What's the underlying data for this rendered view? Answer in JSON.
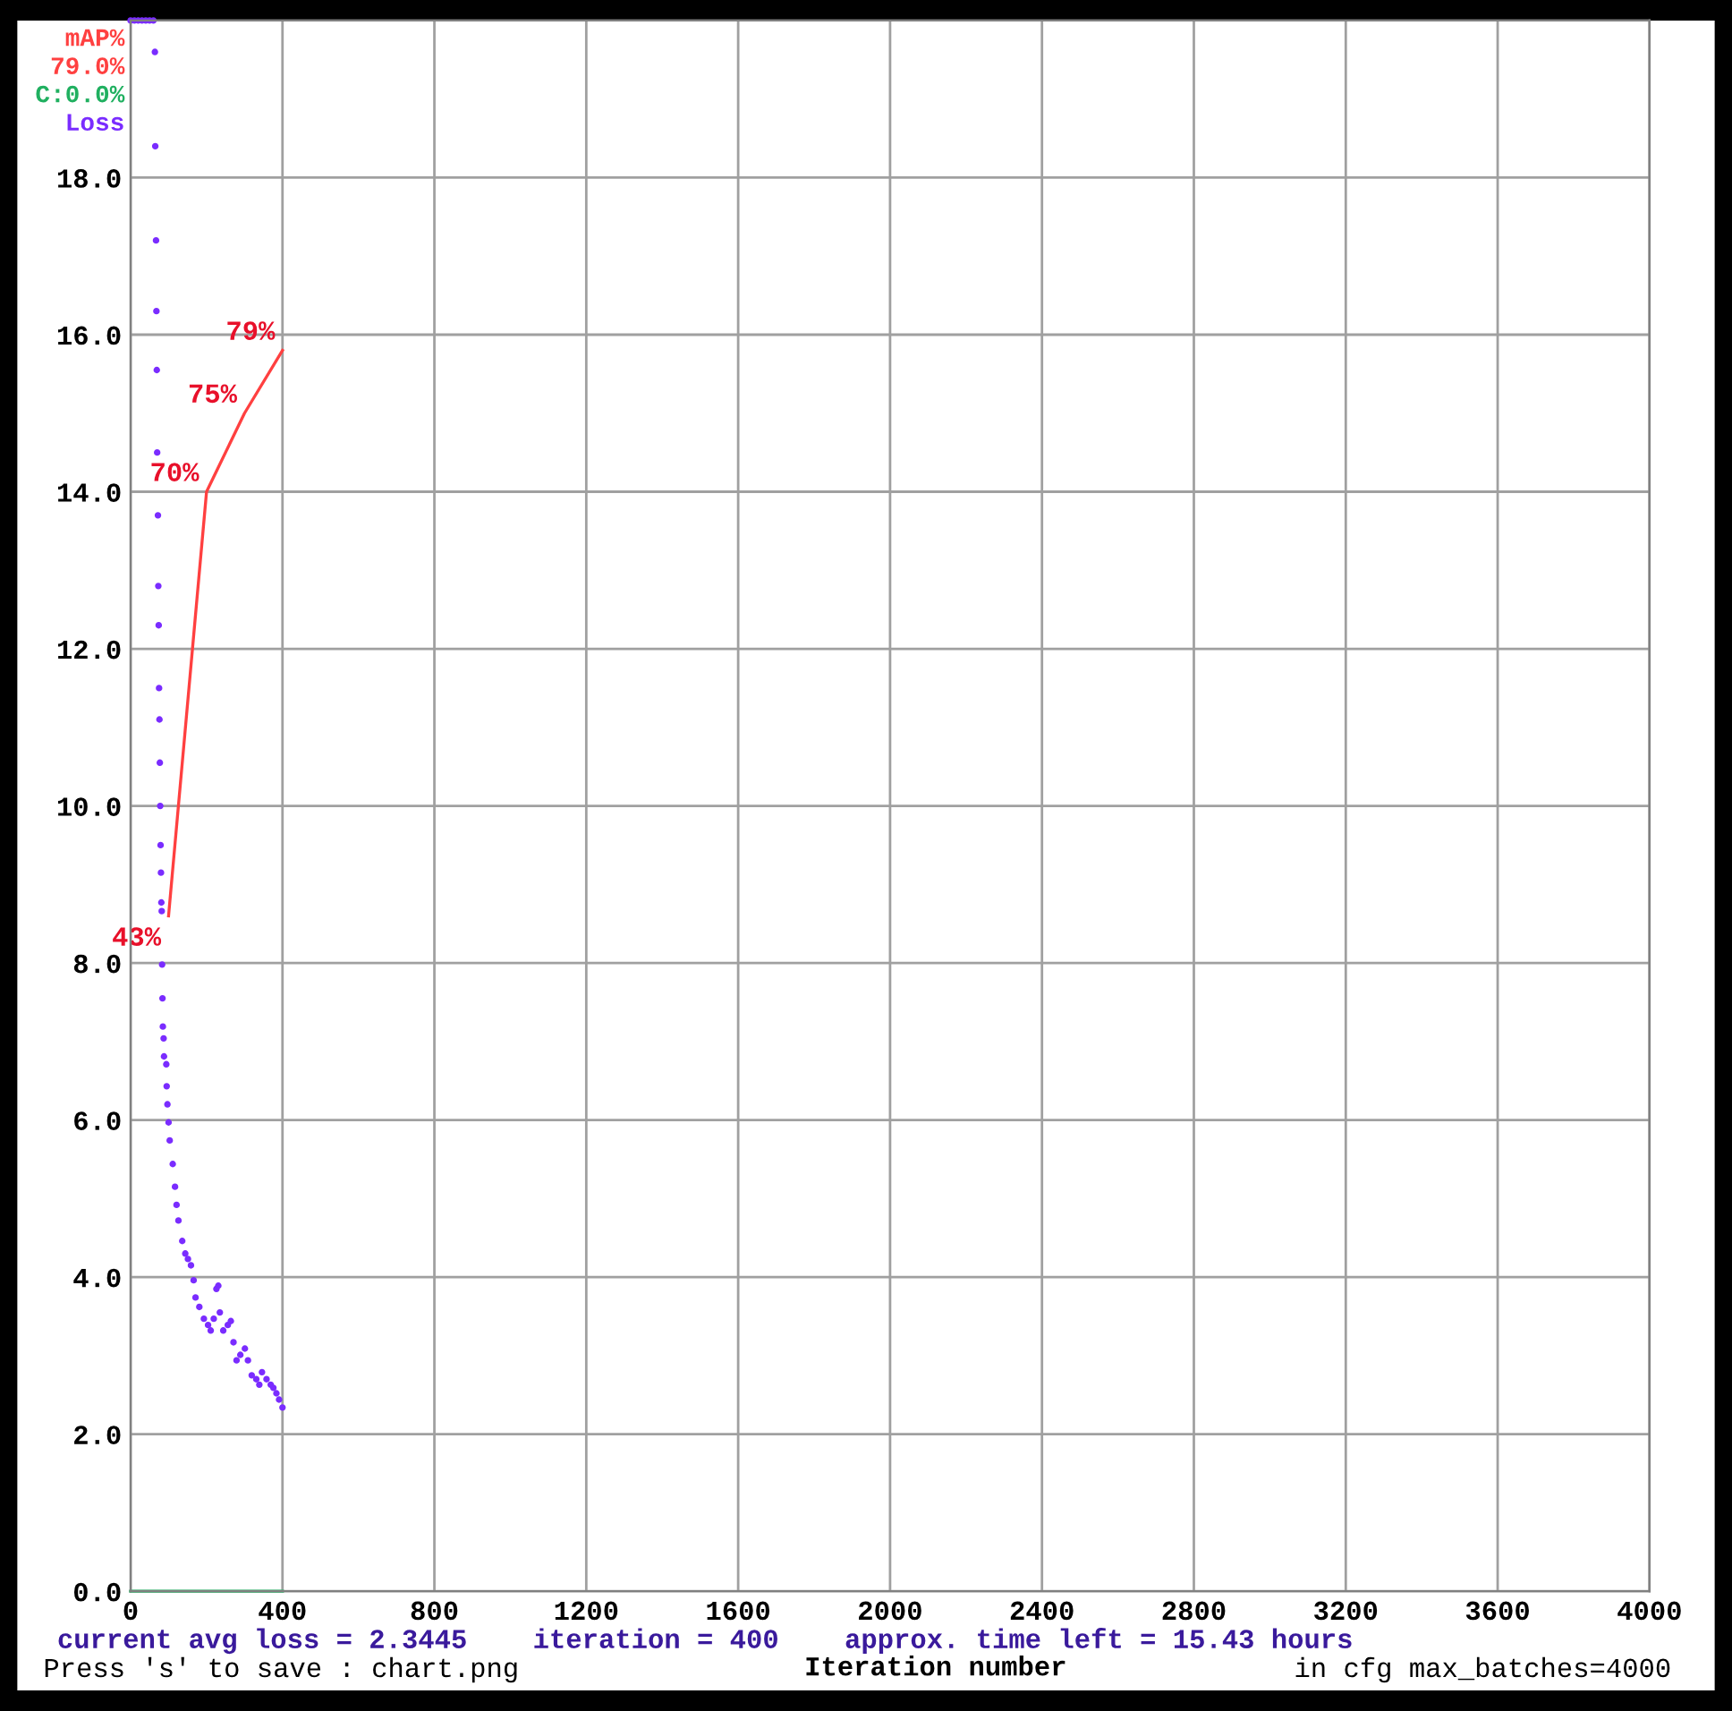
{
  "chart_data": {
    "type": "scatter",
    "xlabel": "Iteration number",
    "xlim": [
      0,
      4000
    ],
    "xticks": [
      0,
      400,
      800,
      1200,
      1600,
      2000,
      2400,
      2800,
      3200,
      3600,
      4000
    ],
    "ylim": [
      0,
      20
    ],
    "yticks": [
      {
        "value": 0,
        "label": "0.0"
      },
      {
        "value": 2,
        "label": "2.0"
      },
      {
        "value": 4,
        "label": "4.0"
      },
      {
        "value": 6,
        "label": "6.0"
      },
      {
        "value": 8,
        "label": "8.0"
      },
      {
        "value": 10,
        "label": "10.0"
      },
      {
        "value": 12,
        "label": "12.0"
      },
      {
        "value": 14,
        "label": "14.0"
      },
      {
        "value": 16,
        "label": "16.0"
      },
      {
        "value": 18,
        "label": "18.0"
      }
    ],
    "y2lim": [
      0,
      100
    ],
    "grid": true,
    "legend": "top left",
    "tick_labels": "xy",
    "series": [
      {
        "name": "mAP%",
        "type": "line",
        "axis": "y2",
        "color": "#ff4040",
        "x": [
          100,
          200,
          300,
          400
        ],
        "values": [
          43,
          70,
          75,
          79
        ],
        "value_labels": [
          "43%",
          "70%",
          "75%",
          "79%"
        ]
      },
      {
        "name": "C:0.0%",
        "type": "line",
        "axis": "y2",
        "color": "#20b060",
        "x": [
          0,
          400
        ],
        "values": [
          0,
          0
        ]
      },
      {
        "name": "Loss",
        "marker": "circle",
        "color": "#7a2cff",
        "x": [
          0,
          10,
          20,
          30,
          40,
          50,
          60,
          64,
          65,
          67,
          68,
          69,
          70,
          72,
          73,
          74,
          75,
          76,
          77,
          78,
          79,
          80,
          81,
          82,
          83,
          84,
          85,
          87,
          88,
          94,
          95,
          97,
          100,
          103,
          111,
          117,
          121,
          126,
          136,
          144,
          151,
          159,
          166,
          171,
          181,
          193,
          204,
          211,
          219,
          226,
          231,
          235,
          244,
          256,
          264,
          271,
          279,
          289,
          301,
          309,
          319,
          331,
          339,
          346,
          358,
          369,
          376,
          384,
          391,
          400
        ],
        "values": [
          20,
          20,
          20,
          20,
          20,
          20,
          20,
          19.6,
          18.4,
          17.2,
          16.3,
          15.55,
          14.5,
          13.7,
          12.8,
          12.3,
          11.5,
          11.1,
          10.55,
          10.0,
          9.5,
          9.15,
          8.77,
          8.66,
          7.98,
          7.55,
          7.19,
          7.04,
          6.81,
          6.71,
          6.43,
          6.2,
          5.97,
          5.74,
          5.44,
          5.15,
          4.92,
          4.72,
          4.46,
          4.3,
          4.23,
          4.15,
          3.96,
          3.74,
          3.62,
          3.47,
          3.39,
          3.32,
          3.47,
          3.85,
          3.89,
          3.55,
          3.32,
          3.39,
          3.44,
          3.17,
          2.94,
          3.01,
          3.09,
          2.94,
          2.75,
          2.7,
          2.63,
          2.79,
          2.7,
          2.63,
          2.59,
          2.52,
          2.44,
          2.34
        ]
      }
    ],
    "annotations": [
      "79.0%",
      "current avg loss = 2.3445    iteration = 400    approx. time left = 15.43 hours",
      "Press 's' to save : chart.png",
      "in cfg max_batches=4000"
    ]
  }
}
